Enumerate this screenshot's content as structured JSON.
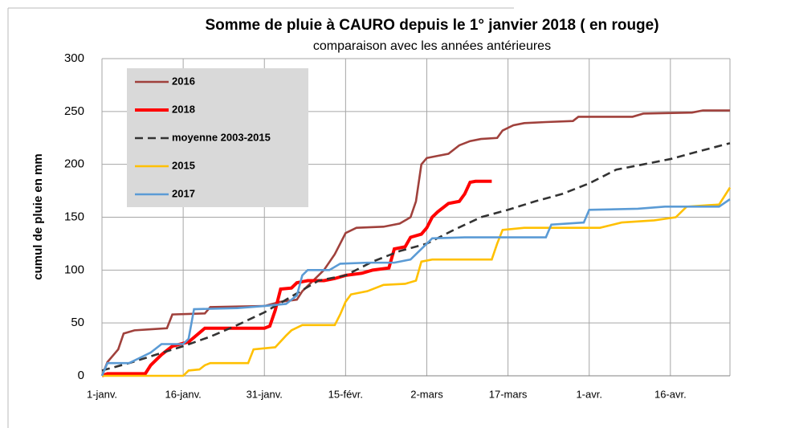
{
  "chart_data": {
    "type": "line",
    "title": "Somme de pluie à CAURO depuis le 1° janvier 2018 ( en rouge)",
    "subtitle": "comparaison avec les années antérieures",
    "y_label": "cumul de pluie en mm",
    "xlim": [
      0,
      116
    ],
    "ylim": [
      0,
      300
    ],
    "xticks": [
      {
        "value": 0,
        "label": "1-janv."
      },
      {
        "value": 15,
        "label": "16-janv."
      },
      {
        "value": 30,
        "label": "31-janv."
      },
      {
        "value": 45,
        "label": "15-févr."
      },
      {
        "value": 60,
        "label": "2-mars"
      },
      {
        "value": 75,
        "label": "17-mars"
      },
      {
        "value": 90,
        "label": "1-avr."
      },
      {
        "value": 105,
        "label": "16-avr."
      }
    ],
    "yticks": [
      0,
      50,
      100,
      150,
      200,
      250,
      300
    ],
    "grid": true,
    "legend": "upper left",
    "series": [
      {
        "name": "2016",
        "color": "#a0413c",
        "dash": false,
        "x": [
          0,
          1,
          3,
          4,
          6,
          9,
          12,
          13,
          19,
          20,
          30,
          33,
          36,
          37,
          40,
          41,
          43,
          44,
          45,
          47,
          52,
          55,
          57,
          58,
          59,
          60,
          62,
          64,
          66,
          68,
          70,
          73,
          74,
          76,
          78,
          82,
          87,
          88,
          98,
          100,
          109,
          111,
          116
        ],
        "values": [
          0,
          13,
          25,
          40,
          43,
          44,
          45,
          58,
          59,
          65,
          66,
          70,
          72,
          80,
          95,
          100,
          115,
          125,
          135,
          140,
          141,
          144,
          150,
          165,
          200,
          206,
          208,
          210,
          218,
          222,
          224,
          225,
          232,
          237,
          239,
          240,
          241,
          245,
          245,
          248,
          249,
          251,
          251
        ]
      },
      {
        "name": "2018",
        "color": "#ff0000",
        "dash": false,
        "x": [
          0,
          1,
          8,
          9,
          11,
          13,
          16,
          19,
          30,
          31,
          32,
          33,
          35,
          36,
          38,
          41,
          43,
          45,
          48,
          50,
          53,
          54,
          56,
          57,
          59,
          60,
          61,
          62,
          64,
          66,
          67,
          68,
          69,
          72
        ],
        "values": [
          0,
          2,
          2,
          10,
          20,
          28,
          32,
          45,
          45,
          47,
          62,
          82,
          83,
          88,
          90,
          90,
          92,
          95,
          97,
          100,
          102,
          120,
          122,
          131,
          134,
          140,
          150,
          155,
          163,
          165,
          172,
          183,
          184,
          184
        ]
      },
      {
        "name": "moyenne 2003-2015",
        "color": "#333333",
        "dash": true,
        "x": [
          0,
          5,
          10,
          15,
          20,
          25,
          30,
          35,
          40,
          45,
          50,
          55,
          60,
          65,
          70,
          75,
          80,
          85,
          90,
          95,
          100,
          105,
          110,
          116
        ],
        "values": [
          5,
          12,
          20,
          28,
          37,
          48,
          60,
          75,
          90,
          95,
          108,
          118,
          125,
          138,
          150,
          157,
          165,
          172,
          182,
          195,
          200,
          205,
          212,
          220
        ]
      },
      {
        "name": "2015",
        "color": "#ffc000",
        "dash": false,
        "x": [
          0,
          15,
          16,
          18,
          19,
          20,
          27,
          28,
          32,
          34,
          35,
          37,
          43,
          44,
          45,
          46,
          49,
          52,
          56,
          58,
          59,
          61,
          72,
          73,
          74,
          78,
          92,
          96,
          102,
          106,
          108,
          114,
          116
        ],
        "values": [
          0,
          0,
          5,
          6,
          10,
          12,
          12,
          25,
          27,
          38,
          43,
          48,
          48,
          58,
          70,
          77,
          80,
          86,
          87,
          90,
          108,
          110,
          110,
          125,
          138,
          140,
          140,
          145,
          147,
          150,
          160,
          162,
          178
        ]
      },
      {
        "name": "2017",
        "color": "#5b9bd5",
        "dash": false,
        "x": [
          0,
          1,
          5,
          7,
          9,
          11,
          15,
          16,
          17,
          25,
          30,
          34,
          36,
          37,
          38,
          42,
          44,
          49,
          54,
          57,
          60,
          61,
          67,
          82,
          83,
          89,
          90,
          99,
          104,
          114,
          116
        ],
        "values": [
          0,
          12,
          12,
          17,
          22,
          30,
          30,
          35,
          63,
          64,
          66,
          68,
          76,
          95,
          100,
          100,
          106,
          107,
          107,
          110,
          125,
          130,
          131,
          131,
          143,
          145,
          157,
          158,
          160,
          160,
          167
        ]
      }
    ]
  }
}
